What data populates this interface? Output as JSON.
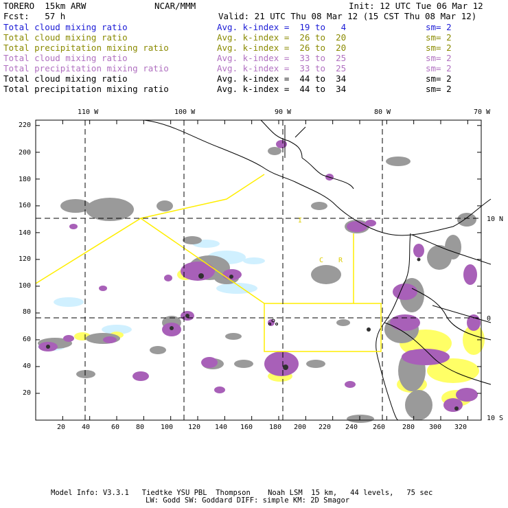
{
  "header": {
    "model": "TORERO  15km ARW",
    "org": "NCAR/MMM",
    "init": "Init: 12 UTC Tue 06 Mar 12",
    "fcst": "Fcst:   57 h",
    "valid": "Valid: 21 UTC Thu 08 Mar 12 (15 CST Thu 08 Mar 12)"
  },
  "fields": [
    {
      "name": "Total cloud mixing ratio",
      "index": "Avg. k-index =  19 to   4",
      "sm": "sm= 2",
      "color": "#1a1ad6"
    },
    {
      "name": "Total cloud mixing ratio",
      "index": "Avg. k-index =  26 to  20",
      "sm": "sm= 2",
      "color": "#8a8a00"
    },
    {
      "name": "Total precipitation mixing ratio",
      "index": "Avg. k-index =  26 to  20",
      "sm": "sm= 2",
      "color": "#8a8a00"
    },
    {
      "name": "Total cloud mixing ratio",
      "index": "Avg. k-index =  33 to  25",
      "sm": "sm= 2",
      "color": "#b070c0"
    },
    {
      "name": "Total precipitation mixing ratio",
      "index": "Avg. k-index =  33 to  25",
      "sm": "sm= 2",
      "color": "#b070c0"
    },
    {
      "name": "Total cloud mixing ratio",
      "index": "Avg. k-index =  44 to  34",
      "sm": "sm= 2",
      "color": "#000000"
    },
    {
      "name": "Total precipitation mixing ratio",
      "index": "Avg. k-index =  44 to  34",
      "sm": "sm= 2",
      "color": "#000000"
    }
  ],
  "axes": {
    "top_lon": [
      "110 W",
      "100 W",
      "90 W",
      "80 W",
      "70 W"
    ],
    "right_lat": [
      "10 N",
      "0",
      "10 S"
    ],
    "left_ticks": [
      "220",
      "200",
      "180",
      "160",
      "140",
      "120",
      "100",
      "80",
      "60",
      "40",
      "20"
    ],
    "bottom_ticks": [
      "20",
      "40",
      "60",
      "80",
      "100",
      "120",
      "140",
      "160",
      "180",
      "200",
      "220",
      "240",
      "260",
      "280",
      "300",
      "320"
    ]
  },
  "map_labels": [
    "I",
    "C",
    "R"
  ],
  "colors": {
    "land": "#ffffff",
    "yellow_cloud": "#ffff66",
    "purple_precip": "#a860b8",
    "gray_cloud": "#9a9a9a",
    "light_blue": "#d0f0ff",
    "box_line": "#ffee00"
  },
  "footer": {
    "line1": "Model Info: V3.3.1   Tiedtke YSU PBL  Thompson    Noah LSM  15 km,   44 levels,   75 sec",
    "line2": "LW: Godd SW: Goddard DIFF: simple KM: 2D Smagor"
  }
}
